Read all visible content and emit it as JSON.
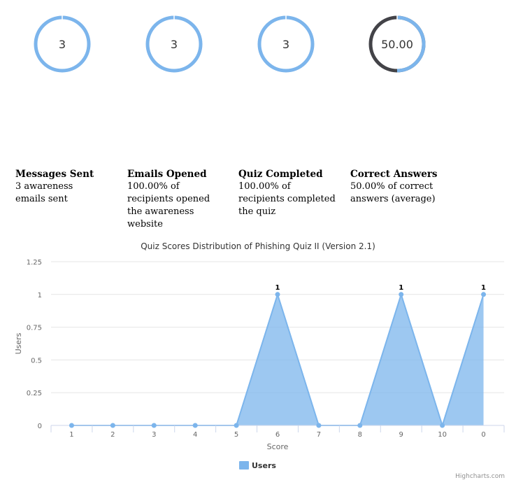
{
  "gauges": [
    {
      "value": "3",
      "fraction": 1.0
    },
    {
      "value": "3",
      "fraction": 1.0
    },
    {
      "value": "3",
      "fraction": 1.0
    },
    {
      "value": "50.00",
      "fraction": 0.5
    }
  ],
  "stats": [
    {
      "title": "Messages Sent",
      "description": "3 awareness emails sent"
    },
    {
      "title": "Emails Opened",
      "description": "100.00% of recipients opened the awareness website"
    },
    {
      "title": "Quiz Completed",
      "description": "100.00% of recipients completed the quiz"
    },
    {
      "title": "Correct Answers",
      "description": "50.00% of correct answers (average)"
    }
  ],
  "colors": {
    "accent": "#7cb5ec",
    "gauge_dark": "#434348",
    "grid": "#e6e6e6",
    "text": "#333333"
  },
  "chart_data": {
    "type": "area",
    "title": "Quiz Scores Distribution of Phishing Quiz II (Version 2.1)",
    "xlabel": "Score",
    "ylabel": "Users",
    "categories": [
      "1",
      "2",
      "3",
      "4",
      "5",
      "6",
      "7",
      "8",
      "9",
      "10",
      "0"
    ],
    "series": [
      {
        "name": "Users",
        "values": [
          0,
          0,
          0,
          0,
          0,
          1,
          0,
          0,
          1,
          0,
          1
        ]
      }
    ],
    "ylim": [
      0,
      1.25
    ],
    "yticks": [
      "0",
      "0.25",
      "0.5",
      "0.75",
      "1",
      "1.25"
    ],
    "data_labels": [
      "1",
      "1",
      "1"
    ],
    "grid": true,
    "legend": "bottom-center"
  },
  "credits": "Highcharts.com"
}
